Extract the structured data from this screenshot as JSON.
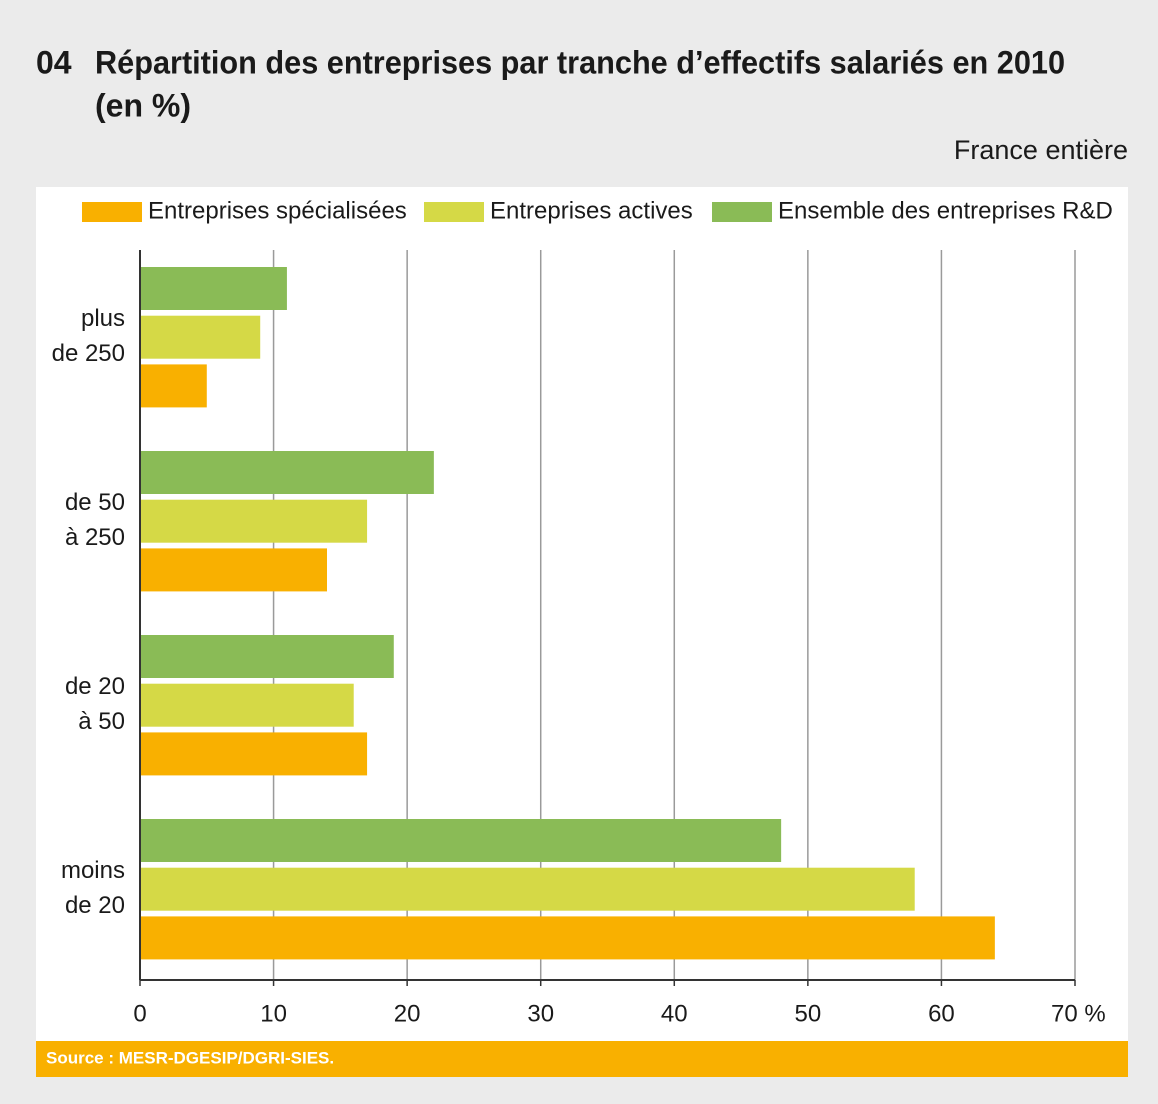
{
  "chart_data": {
    "type": "bar",
    "orientation": "horizontal",
    "number": "04",
    "title_lines": [
      "Répartition des entreprises par tranche d’effectifs salariés en 2010",
      "(en %)"
    ],
    "subtitle": "France entière",
    "categories": [
      [
        "plus",
        "de 250"
      ],
      [
        "de 50",
        "à 250"
      ],
      [
        "de 20",
        "à 50"
      ],
      [
        "moins",
        "de 20"
      ]
    ],
    "series": [
      {
        "name": "Entreprises spécialisées",
        "color": "#f9b000",
        "values": [
          5,
          14,
          17,
          64
        ]
      },
      {
        "name": "Entreprises actives",
        "color": "#d5d946",
        "values": [
          9,
          17,
          16,
          58
        ]
      },
      {
        "name": "Ensemble des entreprises R&D",
        "color": "#8abb56",
        "values": [
          11,
          22,
          19,
          48
        ]
      }
    ],
    "xlim": [
      0,
      70
    ],
    "xticks": [
      0,
      10,
      20,
      30,
      40,
      50,
      60,
      {
        "value": 70,
        "label": "70 %"
      }
    ],
    "grid": true,
    "source": "Source : MESR-DGESIP/DGRI-SIES."
  }
}
